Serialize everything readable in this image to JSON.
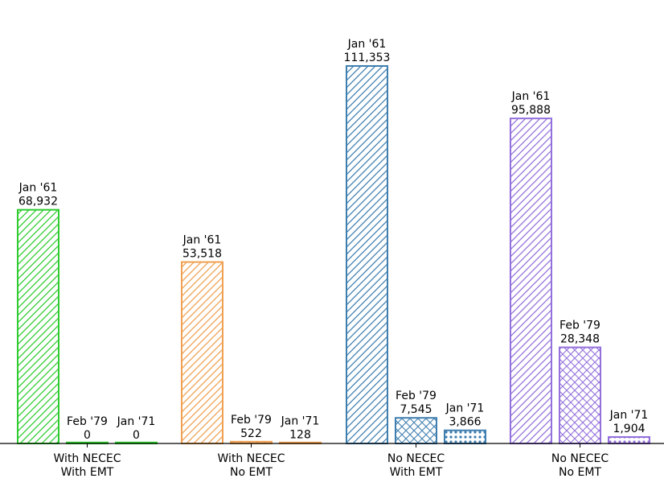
{
  "chart_data": {
    "type": "bar",
    "groups": [
      {
        "category": [
          "With NECEC",
          "With EMT"
        ],
        "color": "#2ecc2e",
        "bars": [
          {
            "label": "Jan '61",
            "value": 68932,
            "value_text": "68,932",
            "pattern": "diag"
          },
          {
            "label": "Feb '79",
            "value": 0,
            "value_text": "0",
            "pattern": "cross"
          },
          {
            "label": "Jan '71",
            "value": 0,
            "value_text": "0",
            "pattern": "dots"
          }
        ]
      },
      {
        "category": [
          "With NECEC",
          "No EMT"
        ],
        "color": "#f0a050",
        "bars": [
          {
            "label": "Jan '61",
            "value": 53518,
            "value_text": "53,518",
            "pattern": "diag"
          },
          {
            "label": "Feb '79",
            "value": 522,
            "value_text": "522",
            "pattern": "cross"
          },
          {
            "label": "Jan '71",
            "value": 128,
            "value_text": "128",
            "pattern": "dots"
          }
        ]
      },
      {
        "category": [
          "No NECEC",
          "With EMT"
        ],
        "color": "#3f7fb0",
        "bars": [
          {
            "label": "Jan '61",
            "value": 111353,
            "value_text": "111,353",
            "pattern": "diag"
          },
          {
            "label": "Feb '79",
            "value": 7545,
            "value_text": "7,545",
            "pattern": "cross"
          },
          {
            "label": "Jan '71",
            "value": 3866,
            "value_text": "3,866",
            "pattern": "dots"
          }
        ]
      },
      {
        "category": [
          "No NECEC",
          "No EMT"
        ],
        "color": "#9370db",
        "bars": [
          {
            "label": "Jan '61",
            "value": 95888,
            "value_text": "95,888",
            "pattern": "diag"
          },
          {
            "label": "Feb '79",
            "value": 28348,
            "value_text": "28,348",
            "pattern": "cross"
          },
          {
            "label": "Jan '71",
            "value": 1904,
            "value_text": "1,904",
            "pattern": "dots"
          }
        ]
      }
    ],
    "ylim": [
      0,
      111353
    ],
    "grid": false,
    "legend": "none"
  }
}
